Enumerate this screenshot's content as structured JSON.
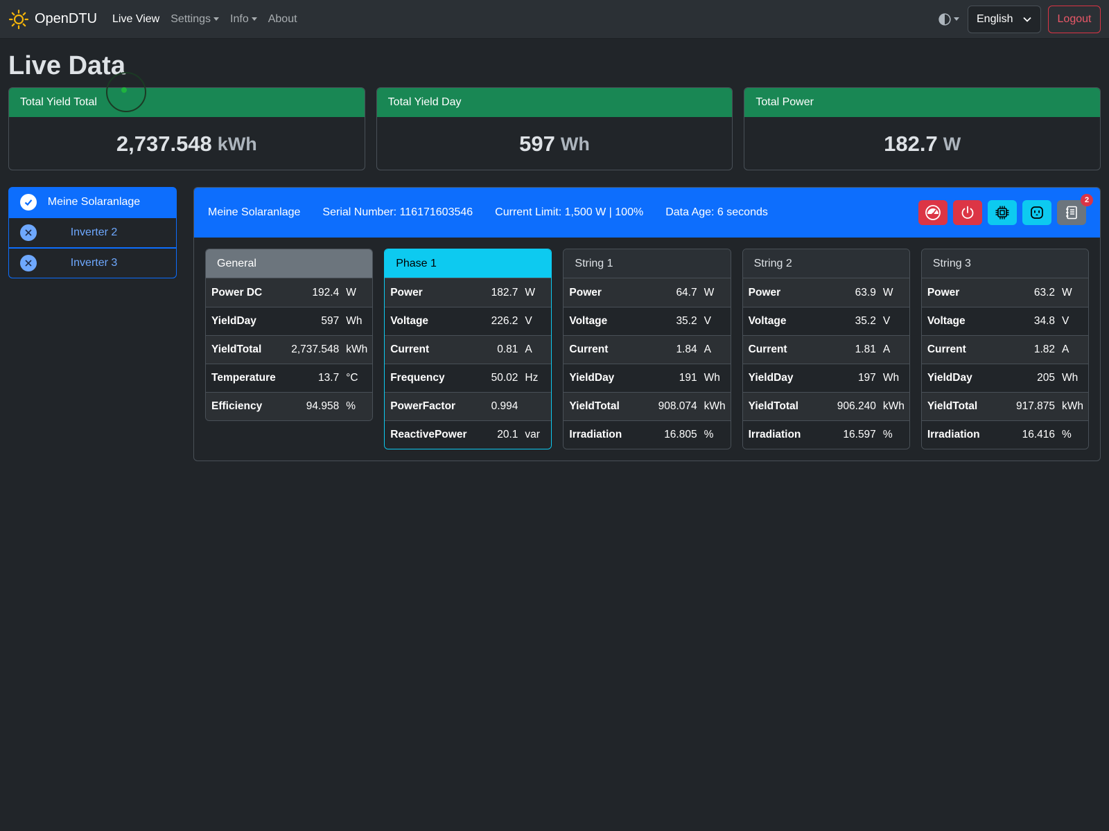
{
  "nav": {
    "brand": "OpenDTU",
    "links": [
      {
        "label": "Live View",
        "active": true,
        "dropdown": false
      },
      {
        "label": "Settings",
        "active": false,
        "dropdown": true
      },
      {
        "label": "Info",
        "active": false,
        "dropdown": true
      },
      {
        "label": "About",
        "active": false,
        "dropdown": false
      }
    ],
    "language": "English",
    "logout": "Logout"
  },
  "page": {
    "title": "Live Data"
  },
  "summary": [
    {
      "title": "Total Yield Total",
      "value": "2,737.548",
      "unit": "kWh"
    },
    {
      "title": "Total Yield Day",
      "value": "597",
      "unit": "Wh"
    },
    {
      "title": "Total Power",
      "value": "182.7",
      "unit": "W"
    }
  ],
  "inverters": [
    {
      "name": "Meine Solaranlage",
      "active": true,
      "status": "ok"
    },
    {
      "name": "Inverter 2",
      "active": false,
      "status": "off"
    },
    {
      "name": "Inverter 3",
      "active": false,
      "status": "off"
    }
  ],
  "selected": {
    "name": "Meine Solaranlage",
    "serial": "Serial Number: 116171603546",
    "limit": "Current Limit: 1,500 W | 100%",
    "age": "Data Age: 6 seconds",
    "event_badge": "2"
  },
  "channels": [
    {
      "title": "General",
      "style": "gray",
      "rows": [
        {
          "name": "Power DC",
          "value": "192.4",
          "unit": "W"
        },
        {
          "name": "YieldDay",
          "value": "597",
          "unit": "Wh"
        },
        {
          "name": "YieldTotal",
          "value": "2,737.548",
          "unit": "kWh"
        },
        {
          "name": "Temperature",
          "value": "13.7",
          "unit": "°C"
        },
        {
          "name": "Efficiency",
          "value": "94.958",
          "unit": "%"
        }
      ]
    },
    {
      "title": "Phase 1",
      "style": "cyan",
      "rows": [
        {
          "name": "Power",
          "value": "182.7",
          "unit": "W"
        },
        {
          "name": "Voltage",
          "value": "226.2",
          "unit": "V"
        },
        {
          "name": "Current",
          "value": "0.81",
          "unit": "A"
        },
        {
          "name": "Frequency",
          "value": "50.02",
          "unit": "Hz"
        },
        {
          "name": "PowerFactor",
          "value": "0.994",
          "unit": ""
        },
        {
          "name": "ReactivePower",
          "value": "20.1",
          "unit": "var"
        }
      ]
    },
    {
      "title": "String 1",
      "style": "plain",
      "rows": [
        {
          "name": "Power",
          "value": "64.7",
          "unit": "W"
        },
        {
          "name": "Voltage",
          "value": "35.2",
          "unit": "V"
        },
        {
          "name": "Current",
          "value": "1.84",
          "unit": "A"
        },
        {
          "name": "YieldDay",
          "value": "191",
          "unit": "Wh"
        },
        {
          "name": "YieldTotal",
          "value": "908.074",
          "unit": "kWh"
        },
        {
          "name": "Irradiation",
          "value": "16.805",
          "unit": "%"
        }
      ]
    },
    {
      "title": "String 2",
      "style": "plain",
      "rows": [
        {
          "name": "Power",
          "value": "63.9",
          "unit": "W"
        },
        {
          "name": "Voltage",
          "value": "35.2",
          "unit": "V"
        },
        {
          "name": "Current",
          "value": "1.81",
          "unit": "A"
        },
        {
          "name": "YieldDay",
          "value": "197",
          "unit": "Wh"
        },
        {
          "name": "YieldTotal",
          "value": "906.240",
          "unit": "kWh"
        },
        {
          "name": "Irradiation",
          "value": "16.597",
          "unit": "%"
        }
      ]
    },
    {
      "title": "String 3",
      "style": "plain",
      "rows": [
        {
          "name": "Power",
          "value": "63.2",
          "unit": "W"
        },
        {
          "name": "Voltage",
          "value": "34.8",
          "unit": "V"
        },
        {
          "name": "Current",
          "value": "1.82",
          "unit": "A"
        },
        {
          "name": "YieldDay",
          "value": "205",
          "unit": "Wh"
        },
        {
          "name": "YieldTotal",
          "value": "917.875",
          "unit": "kWh"
        },
        {
          "name": "Irradiation",
          "value": "16.416",
          "unit": "%"
        }
      ]
    }
  ],
  "icons": {
    "brand": "sun-icon",
    "theme": "half-circle-icon",
    "language_caret": "chevron-down-icon",
    "status_ok": "check-icon",
    "status_off": "x-icon",
    "header_buttons": [
      "speedometer-icon",
      "power-icon",
      "cpu-icon",
      "outlet-icon",
      "journal-icon"
    ]
  },
  "colors": {
    "background": "#212529",
    "navbar": "#2b3035",
    "summary_header": "#198754",
    "primary": "#0d6efd",
    "danger": "#dc3545",
    "info": "#0dcaf0",
    "secondary": "#6c757d"
  }
}
